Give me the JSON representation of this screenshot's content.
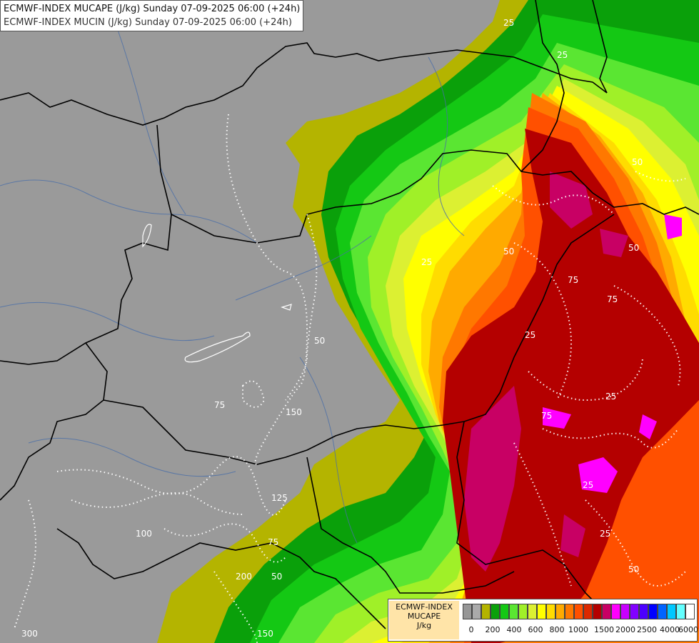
{
  "header": {
    "line1": "ECMWF-INDEX MUCAPE (J/kg) Sunday 07-09-2025 06:00 (+24h)",
    "line2": "ECMWF-INDEX MUCIN (J/kg) Sunday 07-09-2025 06:00 (+24h)"
  },
  "legend": {
    "line1": "ECMWF-INDEX",
    "line2": "MUCAPE",
    "line3": "J/kg",
    "colors": [
      "#969696",
      "#aaaaaa",
      "#b4b400",
      "#0aa00a",
      "#14c814",
      "#5ae632",
      "#a0f028",
      "#dcf032",
      "#ffff00",
      "#ffdc00",
      "#ffaa00",
      "#ff7800",
      "#ff5000",
      "#dc2800",
      "#b40000",
      "#c80064",
      "#ff00ff",
      "#c800ff",
      "#8200ff",
      "#4b00ff",
      "#0000ff",
      "#0064ff",
      "#00c8ff",
      "#64ffff",
      "#ffffff"
    ],
    "ticks": [
      "0",
      "200",
      "400",
      "600",
      "800",
      "1000",
      "1500",
      "2000",
      "2500",
      "4000",
      "6000"
    ]
  },
  "map": {
    "contour_labels": [
      "25",
      "25",
      "25",
      "50",
      "50",
      "75",
      "75",
      "25",
      "25",
      "75",
      "25",
      "25",
      "50",
      "50",
      "50",
      "75",
      "150",
      "125",
      "200",
      "100",
      "300",
      "150",
      "50",
      "75"
    ],
    "colors": {
      "background": "#9a9a9a",
      "olive": "#b4b400",
      "dark_green": "#0aa00a",
      "green": "#14c814",
      "light_green": "#5ae632",
      "lime": "#a0f028",
      "yellow_green": "#dcf032",
      "yellow": "#ffff00",
      "gold": "#ffdc00",
      "orange": "#ffaa00",
      "dark_orange": "#ff7800",
      "red_orange": "#ff5000",
      "red": "#dc2800",
      "dark_red": "#b40000",
      "crimson": "#c80064",
      "magenta": "#ff00ff",
      "border": "#000000",
      "river": "#4a6ea8",
      "contour": "#ffffff"
    }
  }
}
